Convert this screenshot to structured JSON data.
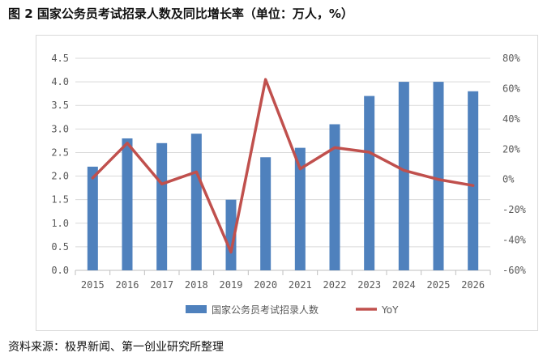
{
  "figure": {
    "title": "图 2  国家公务员考试招录人数及同比增长率（单位：万人，%）",
    "source": "资料来源：极界新闻、第一创业研究所整理"
  },
  "colors": {
    "bar": "#4f81bd",
    "line": "#c0504d",
    "axis": "#d9d9d9",
    "grid": "#d9d9d9"
  },
  "chart_data": {
    "type": "bar",
    "categories": [
      "2015",
      "2016",
      "2017",
      "2018",
      "2019",
      "2020",
      "2021",
      "2022",
      "2023",
      "2024",
      "2025",
      "2026"
    ],
    "series": [
      {
        "name": "国家公务员考试招录人数",
        "type": "bar",
        "axis": "left",
        "values": [
          2.2,
          2.8,
          2.7,
          2.9,
          1.5,
          2.4,
          2.6,
          3.1,
          3.7,
          4.0,
          4.0,
          3.8
        ]
      },
      {
        "name": "YoY",
        "type": "line",
        "axis": "right",
        "values": [
          1.0,
          24.0,
          -3.0,
          5.0,
          -48.0,
          66.0,
          7.0,
          21.0,
          18.0,
          6.0,
          0.0,
          -4.0
        ]
      }
    ],
    "ylim_left": [
      0,
      4.5
    ],
    "yticks_left": [
      "0.0",
      "0.5",
      "1.0",
      "1.5",
      "2.0",
      "2.5",
      "3.0",
      "3.5",
      "4.0",
      "4.5"
    ],
    "ylim_right": [
      -60,
      80
    ],
    "yticks_right": [
      "-60%",
      "-40%",
      "-20%",
      "0%",
      "20%",
      "40%",
      "60%",
      "80%"
    ],
    "grid": true,
    "legend_position": "bottom"
  }
}
